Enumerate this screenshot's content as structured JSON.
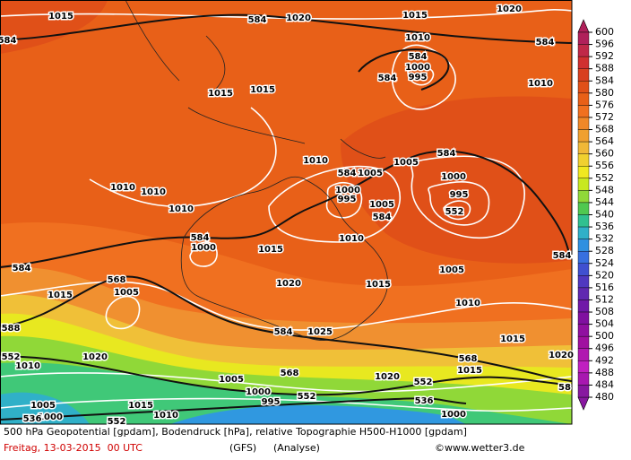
{
  "map": {
    "contour_labels": [
      "1015",
      "1020",
      "584",
      "1015",
      "1020",
      "584",
      "584",
      "1010",
      "584",
      "1000",
      "995",
      "584",
      "1010",
      "1015",
      "1015",
      "1010",
      "584",
      "1005",
      "1005",
      "584",
      "1000",
      "1000",
      "995",
      "995",
      "552",
      "1005",
      "584",
      "1010",
      "1010",
      "1010",
      "584",
      "1000",
      "584",
      "584",
      "1015",
      "1005",
      "1010",
      "1020",
      "1015",
      "568",
      "1005",
      "1015",
      "1010",
      "588",
      "584",
      "1025",
      "1010",
      "552",
      "1020",
      "568",
      "1015",
      "1015",
      "568",
      "1020",
      "552",
      "552",
      "536",
      "1005",
      "1000",
      "995",
      "1015",
      "1005",
      "1000",
      "536",
      "552",
      "1010",
      "1000",
      "1020",
      "58"
    ]
  },
  "colorbar": {
    "ticks": [
      600,
      596,
      592,
      588,
      584,
      580,
      576,
      572,
      568,
      564,
      560,
      556,
      552,
      548,
      544,
      540,
      536,
      532,
      528,
      524,
      520,
      516,
      512,
      508,
      504,
      500,
      496,
      492,
      488,
      484,
      480
    ],
    "colors": [
      "#b0205a",
      "#c02848",
      "#d03030",
      "#d84020",
      "#e05018",
      "#e86018",
      "#f07020",
      "#f08828",
      "#f0a030",
      "#f0b838",
      "#f0d030",
      "#f0e820",
      "#c8e820",
      "#90d838",
      "#50c850",
      "#30c090",
      "#30b0c8",
      "#3090e0",
      "#3870e0",
      "#4050d0",
      "#5038c0",
      "#6028b0",
      "#7018a8",
      "#8010a0",
      "#9010a0",
      "#a010a0",
      "#b018b0",
      "#c020c0",
      "#a818b0",
      "#8818a0"
    ]
  },
  "footer": {
    "description": "500 hPa Geopotential [gpdam], Bodendruck [hPa], relative Topographie H500-H1000 [gpdam]",
    "date": "Freitag, 13-03-2015  00 UTC",
    "model": "(GFS)",
    "run": "(Analyse)",
    "credit": "©www.wetter3.de"
  }
}
